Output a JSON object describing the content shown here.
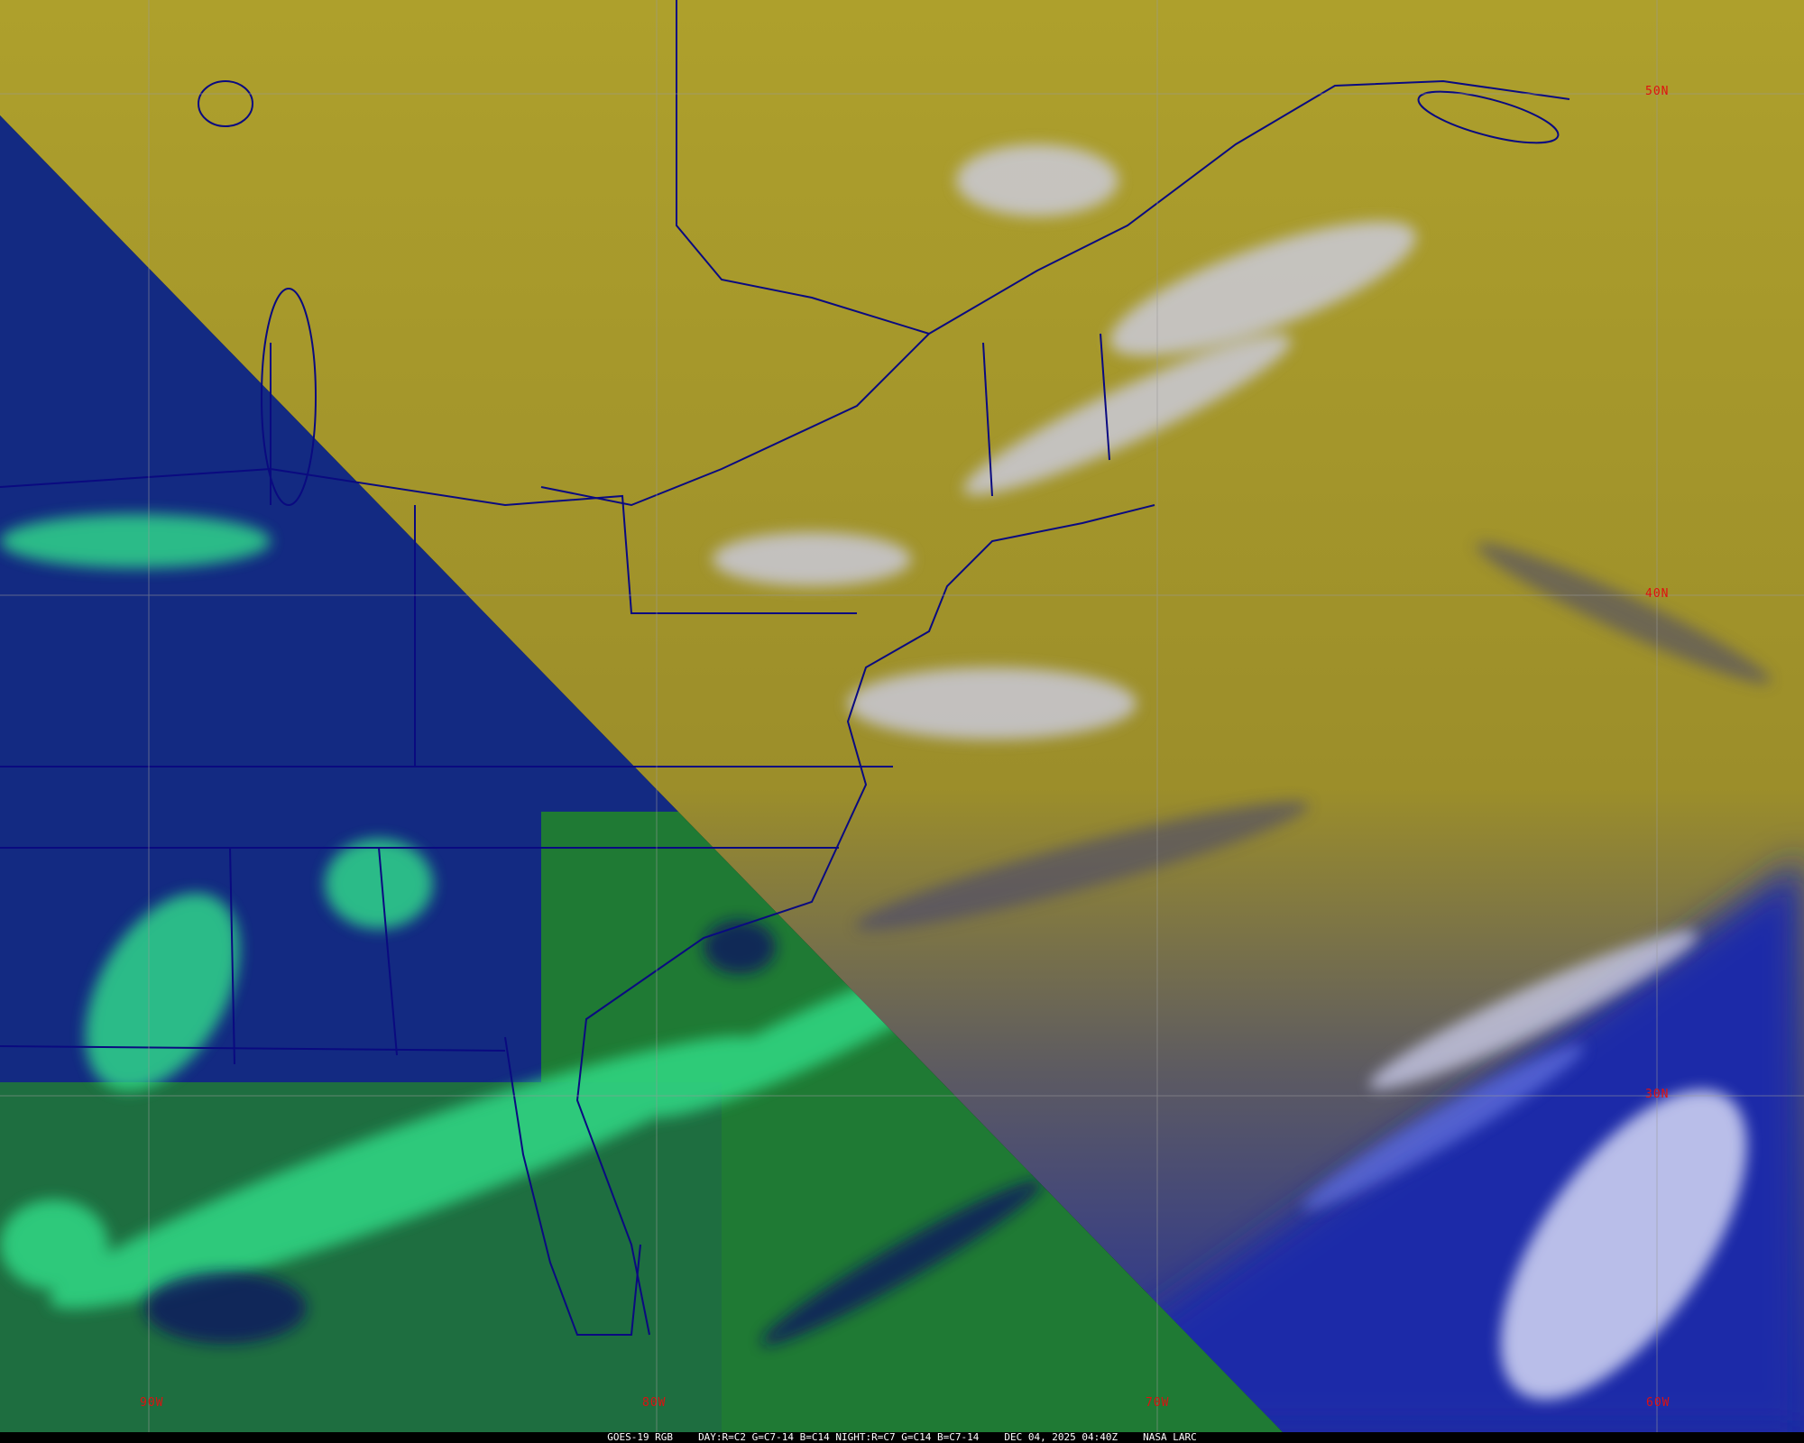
{
  "caption": {
    "satellite": "GOES-19 RGB",
    "recipe": "DAY:R=C2 G=C7-14 B=C14 NIGHT:R=C7 G=C14 B=C7-14",
    "datetime": "DEC 04, 2025 04:40Z",
    "credit": "NASA LARC"
  },
  "grid": {
    "longitudes": [
      "90W",
      "80W",
      "70W",
      "60W"
    ],
    "latitudes": [
      "50N",
      "40N",
      "30N"
    ]
  },
  "colors": {
    "day_side": "#a99b2a",
    "night_land": "#12227a",
    "night_cloud": "#2fe08a",
    "day_cloud": "#c8c8f0",
    "ocean_deep": "#1c2a9a",
    "borders": "#0a0a80",
    "grid_label": "#e01010"
  }
}
